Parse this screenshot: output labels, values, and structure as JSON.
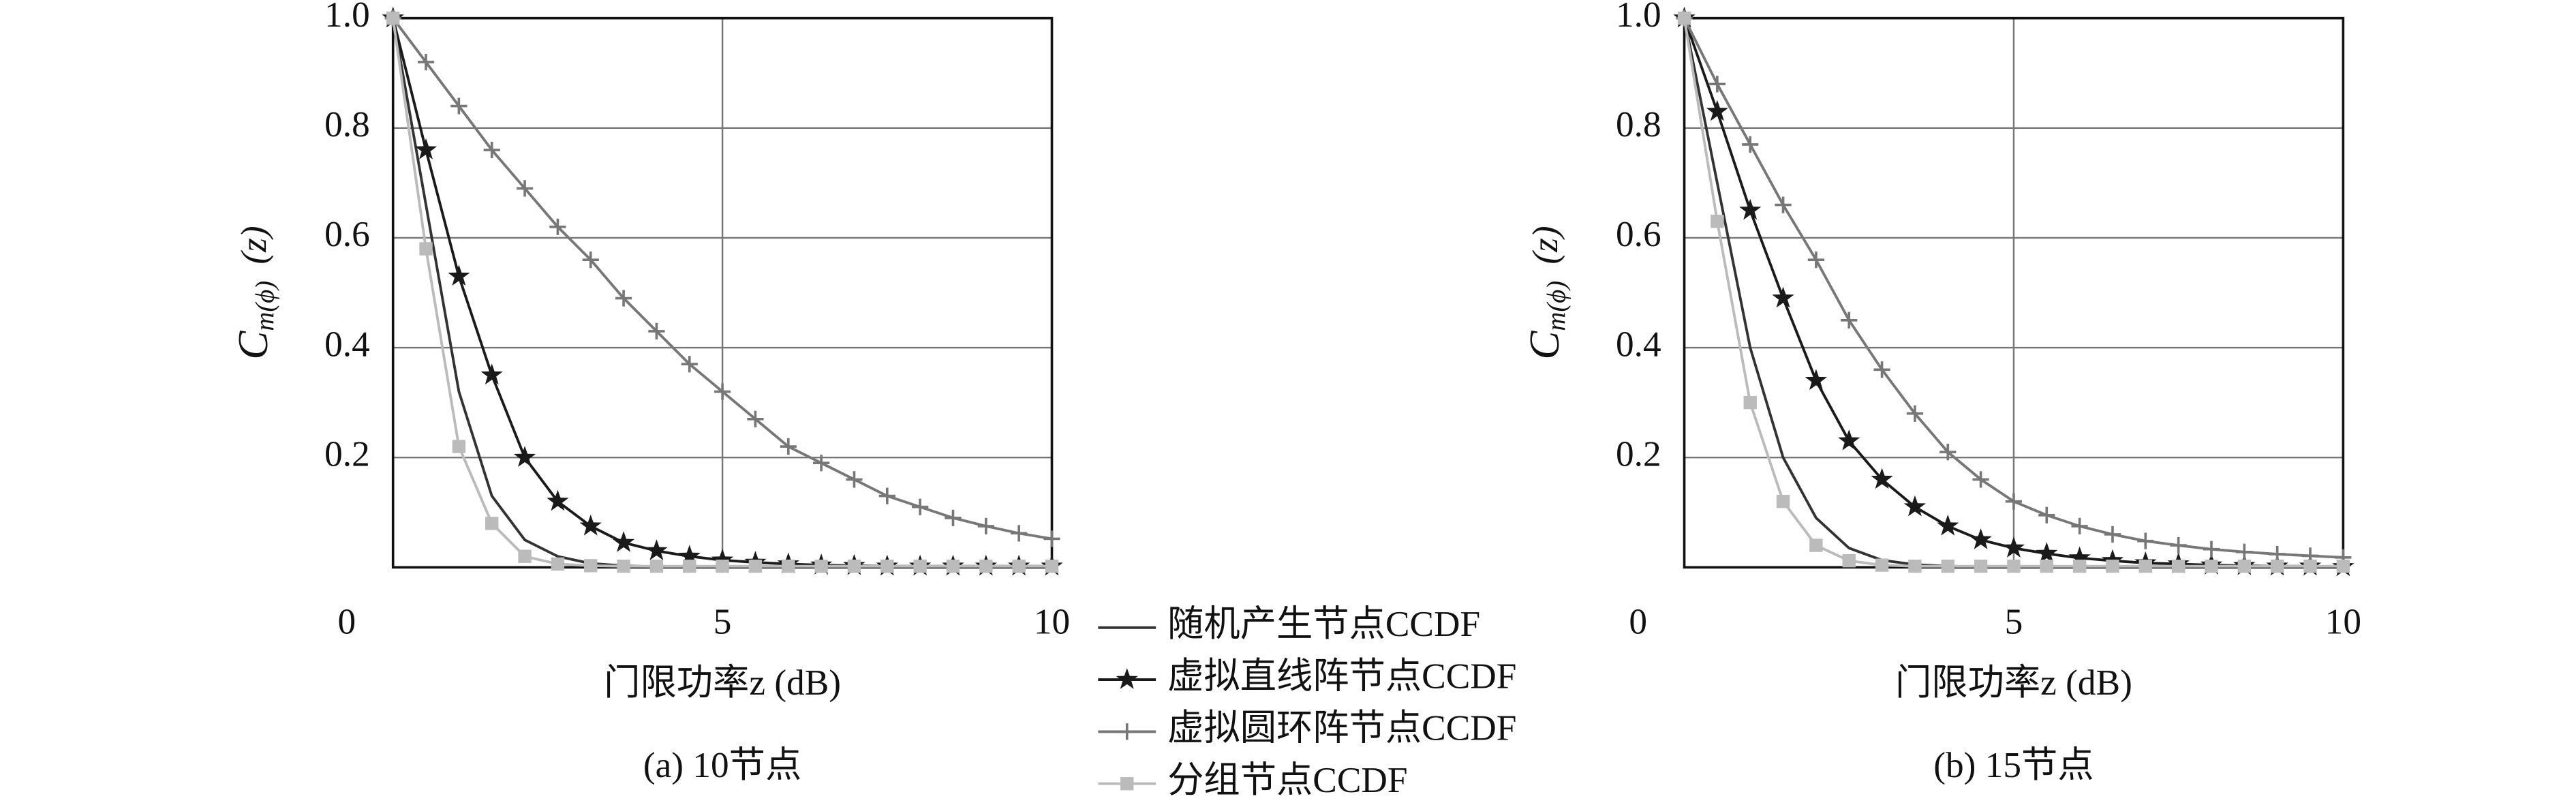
{
  "chart_data": [
    {
      "type": "line",
      "caption": "(a) 10节点",
      "xlabel": "门限功率z (dB)",
      "ylabel": {
        "main": "C",
        "sub": "m(ϕ)",
        "arg": "(z)"
      },
      "xlim": [
        0,
        10
      ],
      "ylim": [
        0,
        1
      ],
      "xticks": [
        0,
        5,
        10
      ],
      "yticks": [
        0.2,
        0.4,
        0.6,
        0.8,
        {
          "value": 1,
          "label": "1.0"
        }
      ],
      "grid": true,
      "x": [
        0,
        0.5,
        1,
        1.5,
        2,
        2.5,
        3,
        3.5,
        4,
        4.5,
        5,
        5.5,
        6,
        6.5,
        7,
        7.5,
        8,
        8.5,
        9,
        9.5,
        10
      ],
      "series": [
        {
          "name": "随机产生节点CCDF",
          "color": "#333333",
          "marker": "none",
          "values": [
            1,
            0.66,
            0.32,
            0.13,
            0.05,
            0.02,
            0.007,
            0.003,
            0.001,
            0.001,
            0.001,
            0.001,
            0.001,
            0.001,
            0.001,
            0.001,
            0.001,
            0.001,
            0.001,
            0.001,
            0.001
          ]
        },
        {
          "name": "虚拟直线阵节点CCDF",
          "color": "#1a1a1a",
          "marker": "star",
          "values": [
            1,
            0.76,
            0.53,
            0.35,
            0.2,
            0.12,
            0.075,
            0.045,
            0.03,
            0.02,
            0.013,
            0.009,
            0.006,
            0.004,
            0.003,
            0.002,
            0.002,
            0.002,
            0.002,
            0.002,
            0.002
          ]
        },
        {
          "name": "虚拟圆环阵节点CCDF",
          "color": "#777777",
          "marker": "plus",
          "values": [
            1,
            0.92,
            0.84,
            0.76,
            0.69,
            0.62,
            0.56,
            0.49,
            0.43,
            0.37,
            0.32,
            0.27,
            0.22,
            0.19,
            0.16,
            0.13,
            0.11,
            0.09,
            0.075,
            0.062,
            0.052
          ]
        },
        {
          "name": "分组节点CCDF",
          "color": "#bbbbbb",
          "marker": "square",
          "values": [
            1,
            0.58,
            0.22,
            0.08,
            0.02,
            0.006,
            0.003,
            0.002,
            0.002,
            0.002,
            0.002,
            0.002,
            0.002,
            0.002,
            0.002,
            0.002,
            0.002,
            0.002,
            0.002,
            0.002,
            0.002
          ]
        }
      ]
    },
    {
      "type": "line",
      "caption": "(b) 15节点",
      "xlabel": "门限功率z (dB)",
      "ylabel": {
        "main": "C",
        "sub": "m(ϕ)",
        "arg": "(z)"
      },
      "xlim": [
        0,
        10
      ],
      "ylim": [
        0,
        1
      ],
      "xticks": [
        0,
        5,
        10
      ],
      "yticks": [
        0.2,
        0.4,
        0.6,
        0.8,
        {
          "value": 1,
          "label": "1.0"
        }
      ],
      "grid": true,
      "x": [
        0,
        0.5,
        1,
        1.5,
        2,
        2.5,
        3,
        3.5,
        4,
        4.5,
        5,
        5.5,
        6,
        6.5,
        7,
        7.5,
        8,
        8.5,
        9,
        9.5,
        10
      ],
      "series": [
        {
          "color": "#333333",
          "marker": "none",
          "values": [
            1,
            0.7,
            0.4,
            0.2,
            0.09,
            0.035,
            0.013,
            0.005,
            0.002,
            0.001,
            0.001,
            0.001,
            0.001,
            0.001,
            0.001,
            0.001,
            0.001,
            0.001,
            0.001,
            0.001,
            0.001
          ]
        },
        {
          "color": "#1a1a1a",
          "marker": "star",
          "values": [
            1,
            0.83,
            0.65,
            0.49,
            0.34,
            0.23,
            0.16,
            0.11,
            0.075,
            0.05,
            0.035,
            0.025,
            0.017,
            0.012,
            0.008,
            0.006,
            0.004,
            0.003,
            0.002,
            0.002,
            0.001
          ]
        },
        {
          "color": "#777777",
          "marker": "plus",
          "values": [
            1,
            0.88,
            0.77,
            0.66,
            0.56,
            0.45,
            0.36,
            0.28,
            0.21,
            0.16,
            0.12,
            0.095,
            0.075,
            0.06,
            0.048,
            0.04,
            0.033,
            0.028,
            0.024,
            0.021,
            0.018
          ]
        },
        {
          "color": "#bbbbbb",
          "marker": "square",
          "values": [
            1,
            0.63,
            0.3,
            0.12,
            0.04,
            0.012,
            0.004,
            0.002,
            0.002,
            0.002,
            0.002,
            0.002,
            0.002,
            0.002,
            0.002,
            0.002,
            0.002,
            0.002,
            0.002,
            0.002,
            0.002
          ]
        }
      ]
    }
  ]
}
